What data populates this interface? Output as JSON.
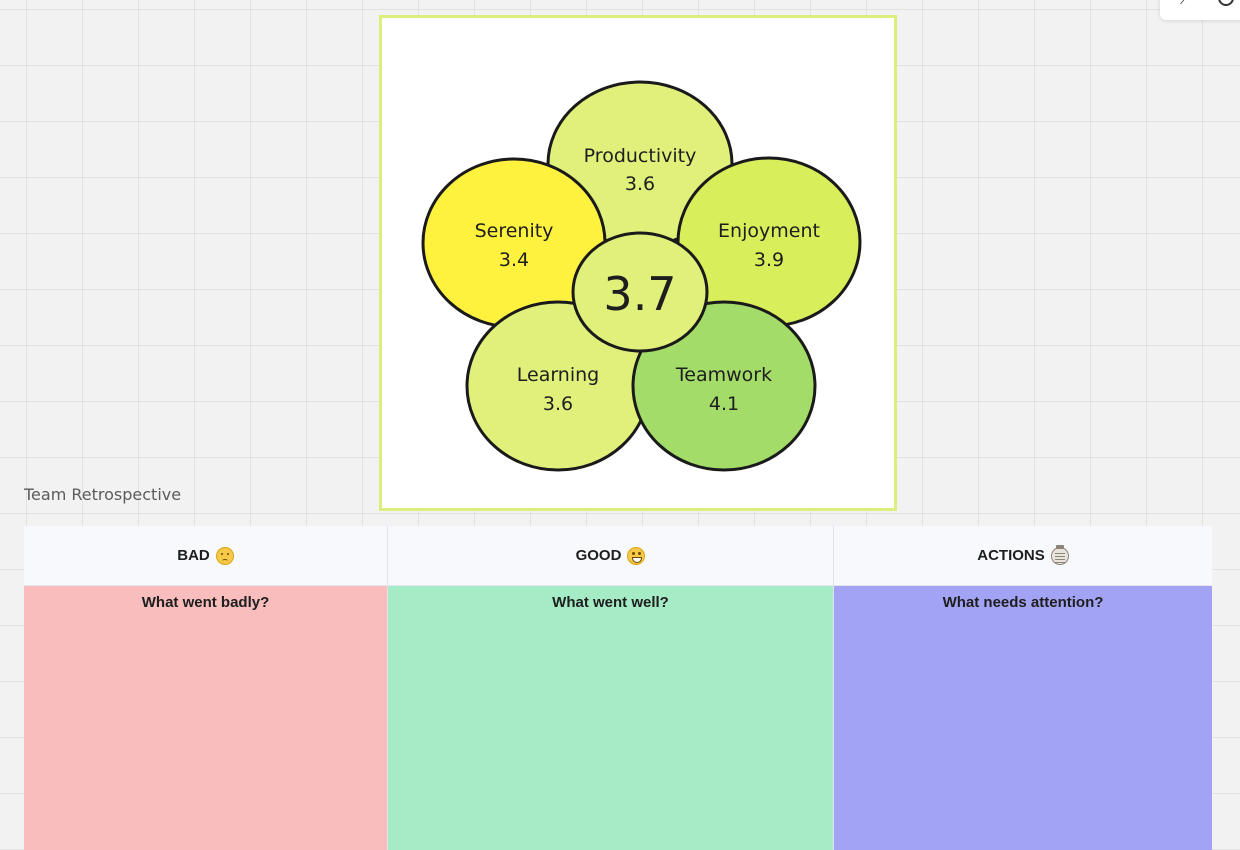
{
  "flower": {
    "center_score": "3.7",
    "petals": [
      {
        "name": "Productivity",
        "score": "3.6",
        "color": "#e0f07b"
      },
      {
        "name": "Serenity",
        "score": "3.4",
        "color": "#fff23f"
      },
      {
        "name": "Enjoyment",
        "score": "3.9",
        "color": "#d8ee5a"
      },
      {
        "name": "Learning",
        "score": "3.6",
        "color": "#e0f07b"
      },
      {
        "name": "Teamwork",
        "score": "4.1",
        "color": "#a3dc68"
      }
    ],
    "center_color": "#e0f07b",
    "card_border_color": "#dcef7c"
  },
  "board": {
    "title": "Team Retrospective",
    "columns": [
      {
        "heading": "BAD",
        "icon": "sad-face-icon",
        "prompt": "What went badly?",
        "color": "#f8bdbc"
      },
      {
        "heading": "GOOD",
        "icon": "grinning-face-icon",
        "prompt": "What went well?",
        "color": "#a5ecc6"
      },
      {
        "heading": "ACTIONS",
        "icon": "clipboard-icon",
        "prompt": "What needs attention?",
        "color": "#a3a3f6"
      }
    ]
  }
}
